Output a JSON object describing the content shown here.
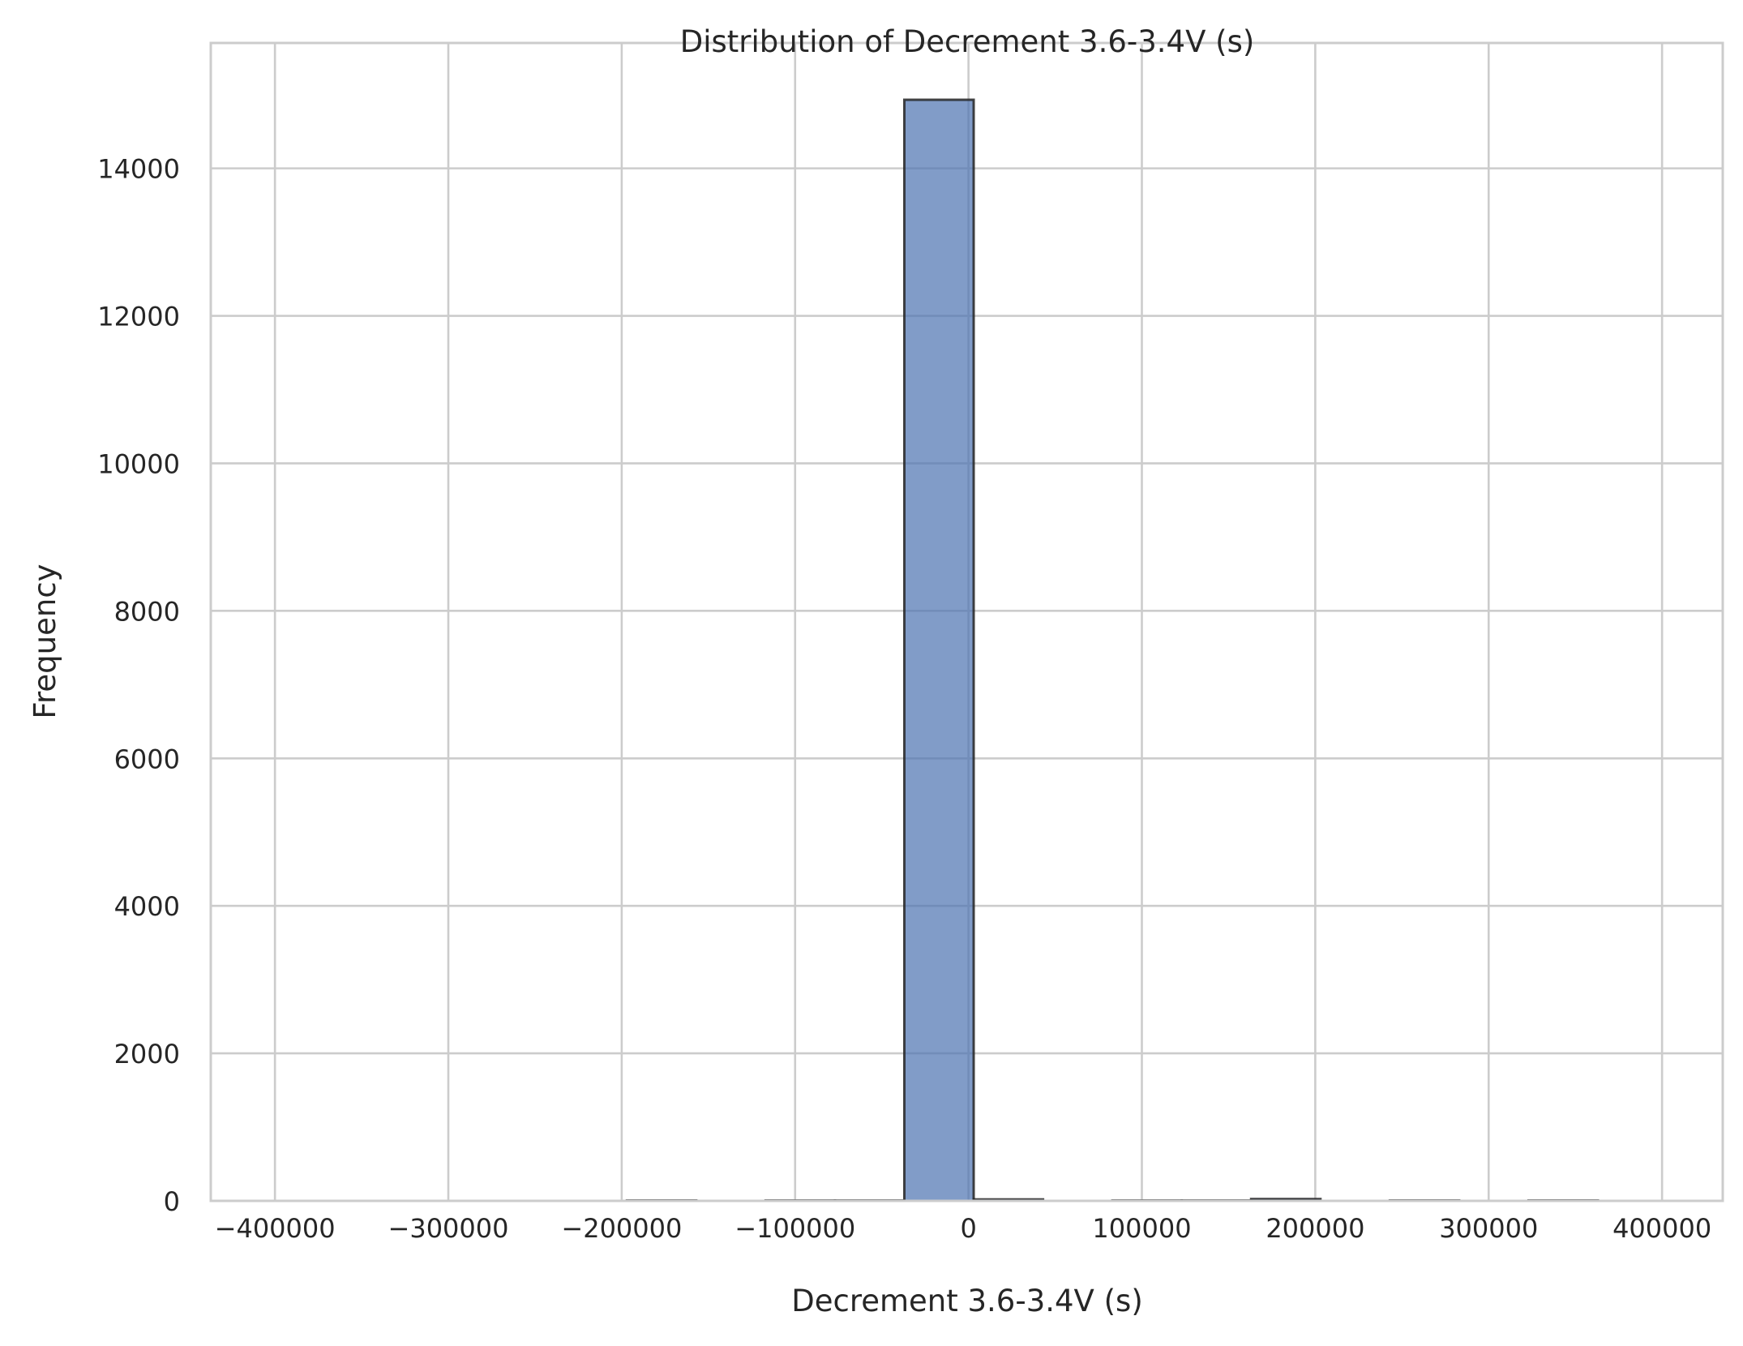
{
  "chart_data": {
    "type": "bar",
    "title": "Distribution of Decrement 3.6-3.4V (s)",
    "xlabel": "Decrement 3.6-3.4V (s)",
    "ylabel": "Frequency",
    "xlim": [
      -437000,
      435000
    ],
    "ylim": [
      0,
      15700
    ],
    "x_ticks": [
      -400000,
      -300000,
      -200000,
      -100000,
      0,
      100000,
      200000,
      300000,
      400000
    ],
    "x_tick_labels": [
      "−400000",
      "−300000",
      "−200000",
      "−100000",
      "0",
      "100000",
      "200000",
      "300000",
      "400000"
    ],
    "y_ticks": [
      0,
      2000,
      4000,
      6000,
      8000,
      10000,
      12000,
      14000
    ],
    "y_tick_labels": [
      "0",
      "2000",
      "4000",
      "6000",
      "8000",
      "10000",
      "12000",
      "14000"
    ],
    "grid": true,
    "bar_color": "#4c72b0",
    "edge_color": "#262626",
    "bins": [
      {
        "x0": -197000,
        "x1": -157000,
        "count": 5
      },
      {
        "x0": -117000,
        "x1": -77000,
        "count": 5
      },
      {
        "x0": -77000,
        "x1": -37000,
        "count": 5
      },
      {
        "x0": -37000,
        "x1": 3000,
        "count": 14930
      },
      {
        "x0": 3000,
        "x1": 43000,
        "count": 20
      },
      {
        "x0": 83000,
        "x1": 123000,
        "count": 5
      },
      {
        "x0": 123000,
        "x1": 163000,
        "count": 5
      },
      {
        "x0": 163000,
        "x1": 203000,
        "count": 25
      },
      {
        "x0": 243000,
        "x1": 283000,
        "count": 5
      },
      {
        "x0": 323000,
        "x1": 363000,
        "count": 5
      }
    ]
  }
}
